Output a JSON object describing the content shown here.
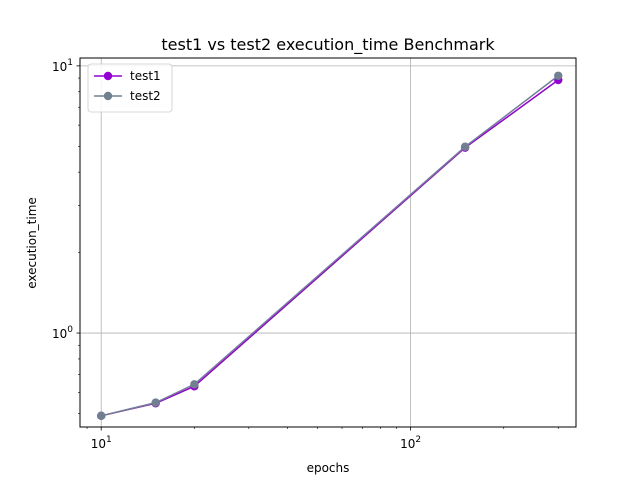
{
  "chart_data": {
    "type": "line",
    "title": "test1 vs test2 execution_time Benchmark",
    "xlabel": "epochs",
    "ylabel": "execution_time",
    "xscale": "log",
    "yscale": "log",
    "xlim": [
      8.54,
      342.4
    ],
    "ylim": [
      0.445,
      10.7
    ],
    "grid": true,
    "legend_position": "top-left",
    "x_ticks": [
      {
        "value": 10,
        "base": "10",
        "exp": "1"
      },
      {
        "value": 100,
        "base": "10",
        "exp": "2"
      }
    ],
    "y_ticks": [
      {
        "value": 1,
        "base": "10",
        "exp": "0"
      },
      {
        "value": 10,
        "base": "10",
        "exp": "1"
      }
    ],
    "series": [
      {
        "name": "test1",
        "color": "#9400D3",
        "x": [
          10,
          15,
          20,
          150,
          300
        ],
        "y": [
          0.49,
          0.546,
          0.632,
          4.94,
          8.85
        ]
      },
      {
        "name": "test2",
        "color": "#708090",
        "x": [
          10,
          15,
          20,
          150,
          300
        ],
        "y": [
          0.49,
          0.549,
          0.643,
          4.98,
          9.18
        ]
      }
    ]
  }
}
